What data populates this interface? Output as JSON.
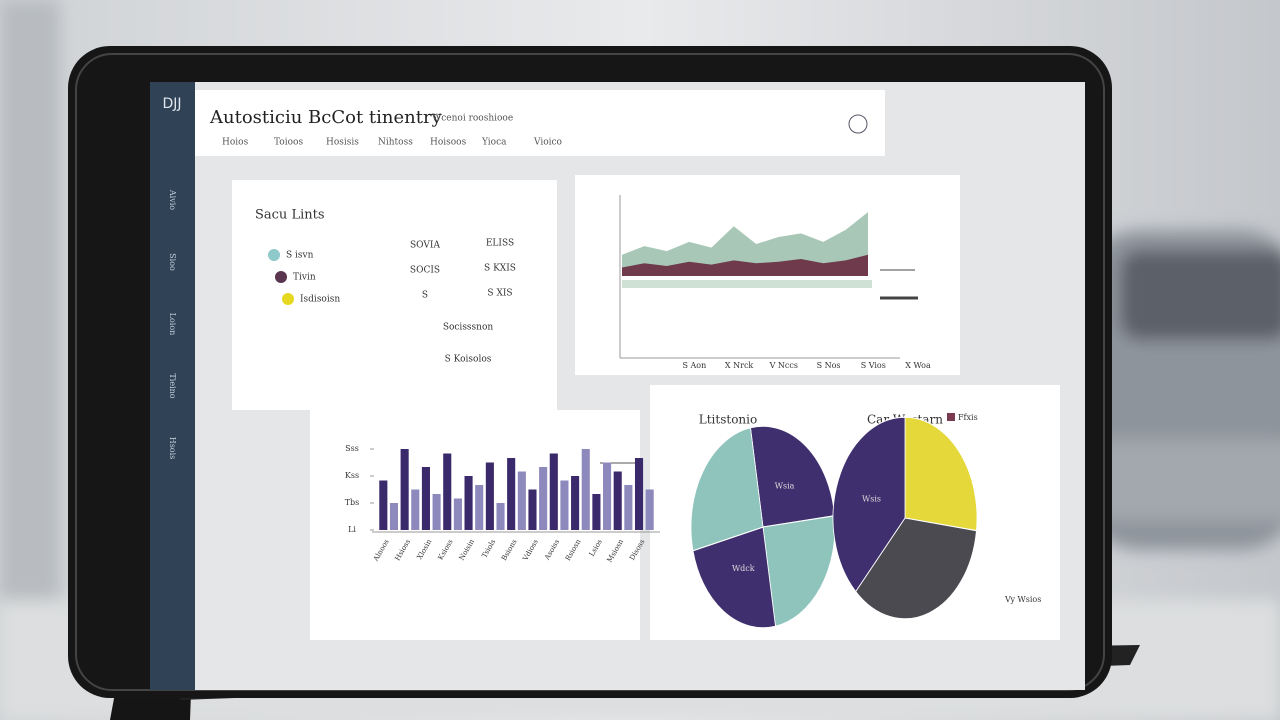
{
  "header": {
    "logo": "DJJ",
    "title": "Autosticiu BcCot tinentry",
    "subtitle": "Wcenoi rooshiooe",
    "tabs": [
      "Hoios",
      "Toioos",
      "Hosisis",
      "Nihtoss",
      "Hoisoos",
      "Yioca",
      "Vioico"
    ]
  },
  "sidebar": {
    "items": [
      "Aivio",
      "Sioo",
      "Loion",
      "Tieino",
      "Hsois"
    ]
  },
  "summary": {
    "title": "Sacu Lints",
    "legend": [
      {
        "label": "S isvn",
        "color": "#8fc9c9"
      },
      {
        "label": "Tivin",
        "color": "#5a3550"
      },
      {
        "label": "Isdisoisn",
        "color": "#e6d820"
      }
    ],
    "col1": [
      "SOVIA",
      "SOCIS",
      "S"
    ],
    "col2": [
      "ELISS",
      "S KXIS",
      "S XIS"
    ],
    "notes": [
      "Socisssnon",
      "S Koisolos"
    ]
  },
  "footer": "Vy Wsios",
  "chart_data": [
    {
      "type": "area",
      "categories": [
        null,
        "S Aon",
        null,
        "X Nrck",
        null,
        "V Nccs",
        null,
        "S Nos",
        null,
        "S Vios",
        null,
        "X Woa"
      ],
      "series": [
        {
          "name": null,
          "color": "#a9c7b6",
          "values": [
            30,
            42,
            35,
            48,
            40,
            70,
            45,
            55,
            60,
            48,
            65,
            90
          ]
        },
        {
          "name": null,
          "color": "#6e3a4c",
          "values": [
            12,
            18,
            14,
            20,
            16,
            22,
            18,
            20,
            24,
            18,
            22,
            30
          ]
        }
      ],
      "ylim": [
        0,
        100
      ]
    },
    {
      "type": "bar",
      "categories": [
        "Alnoos",
        null,
        "Hsioss",
        null,
        "Xlosin",
        null,
        "Ksioss",
        null,
        "Noisin",
        null,
        "Tsiols",
        null,
        "Bsions",
        null,
        "Vdioss",
        null,
        "Asoiss",
        null,
        "Rsiosn",
        null,
        "Lsios",
        null,
        "Msiosn",
        null,
        "Disoss",
        null
      ],
      "values": [
        55,
        30,
        90,
        45,
        70,
        40,
        85,
        35,
        60,
        50,
        75,
        30,
        80,
        65,
        45,
        70,
        85,
        55,
        60,
        90,
        40,
        75,
        65,
        50,
        80,
        45
      ],
      "colors": [
        "#3b2a6b",
        "#8d89bd"
      ],
      "ylim": [
        0,
        100
      ],
      "yticks": [
        {
          "value": 0,
          "label": "Li"
        },
        {
          "value": 30,
          "label": "Tbs"
        },
        {
          "value": 60,
          "label": "Kss"
        },
        {
          "value": 90,
          "label": "Sss"
        }
      ]
    },
    {
      "type": "pie",
      "title": "Ltitstonio",
      "categories": [
        "Wsia",
        null,
        "Wdck",
        null
      ],
      "values": [
        26,
        24,
        24,
        26
      ],
      "colors": [
        "#3f2f6e",
        "#8fc4bd",
        "#3f2f6e",
        "#8fc4bd"
      ]
    },
    {
      "type": "pie",
      "title": "Car Wsstarn",
      "categories": [
        null,
        null,
        "Wsis"
      ],
      "values": [
        27,
        35,
        38
      ],
      "colors": [
        "#e4d83a",
        "#4a4a50",
        "#3f2f6e"
      ],
      "legend": {
        "label": "Ffxis",
        "color": "#7a3a52"
      }
    }
  ]
}
